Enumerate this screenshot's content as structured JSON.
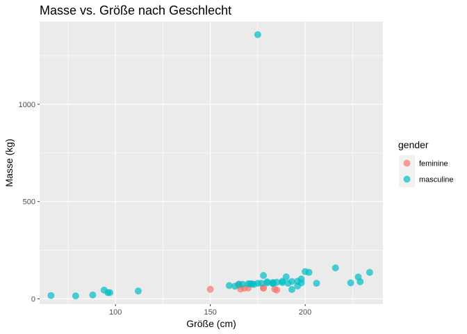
{
  "chart_data": {
    "type": "scatter",
    "title": "Masse vs. Größe nach Geschlecht",
    "xlabel": "Größe (cm)",
    "ylabel": "Masse (kg)",
    "xlim": [
      60,
      241
    ],
    "ylim": [
      -27,
      1425
    ],
    "x_ticks": [
      100,
      150,
      200
    ],
    "x_tick_labels": [
      "100",
      "150",
      "200"
    ],
    "y_ticks": [
      0,
      500,
      1000
    ],
    "y_tick_labels": [
      "0",
      "500",
      "1000"
    ],
    "grid": true,
    "legend": {
      "title": "gender",
      "position": "right",
      "entries": [
        {
          "label": "feminine",
          "color": "#F8766D"
        },
        {
          "label": "masculine",
          "color": "#00BFC4"
        }
      ]
    },
    "series": [
      {
        "name": "feminine",
        "color": "#F8766D",
        "points": [
          [
            150,
            49
          ],
          [
            165,
            75
          ],
          [
            166,
            50
          ],
          [
            168,
            55
          ],
          [
            170,
            56.2
          ],
          [
            178,
            55
          ],
          [
            178,
            57
          ],
          [
            184,
            50
          ],
          [
            185,
            45
          ],
          [
            165,
            68
          ]
        ]
      },
      {
        "name": "masculine",
        "color": "#00BFC4",
        "points": [
          [
            66,
            17
          ],
          [
            79,
            15
          ],
          [
            88,
            20
          ],
          [
            94,
            45
          ],
          [
            96,
            32
          ],
          [
            97,
            32
          ],
          [
            112,
            40
          ],
          [
            160,
            68
          ],
          [
            163,
            65
          ],
          [
            165,
            75
          ],
          [
            167,
            75
          ],
          [
            170,
            77
          ],
          [
            171,
            77
          ],
          [
            172,
            77
          ],
          [
            173,
            74
          ],
          [
            175,
            1358
          ],
          [
            175,
            80
          ],
          [
            177,
            80
          ],
          [
            178,
            120
          ],
          [
            180,
            83
          ],
          [
            180,
            87
          ],
          [
            183,
            84
          ],
          [
            183,
            79
          ],
          [
            183,
            80
          ],
          [
            185,
            85
          ],
          [
            188,
            84
          ],
          [
            188,
            90
          ],
          [
            190,
            113
          ],
          [
            191,
            80
          ],
          [
            193,
            89
          ],
          [
            193,
            48
          ],
          [
            196,
            66
          ],
          [
            196,
            90
          ],
          [
            198,
            82
          ],
          [
            198,
            102
          ],
          [
            200,
            140
          ],
          [
            202,
            136
          ],
          [
            206,
            80
          ],
          [
            216,
            159
          ],
          [
            224,
            82
          ],
          [
            228,
            112
          ],
          [
            229,
            88
          ],
          [
            234,
            136
          ]
        ]
      }
    ]
  }
}
